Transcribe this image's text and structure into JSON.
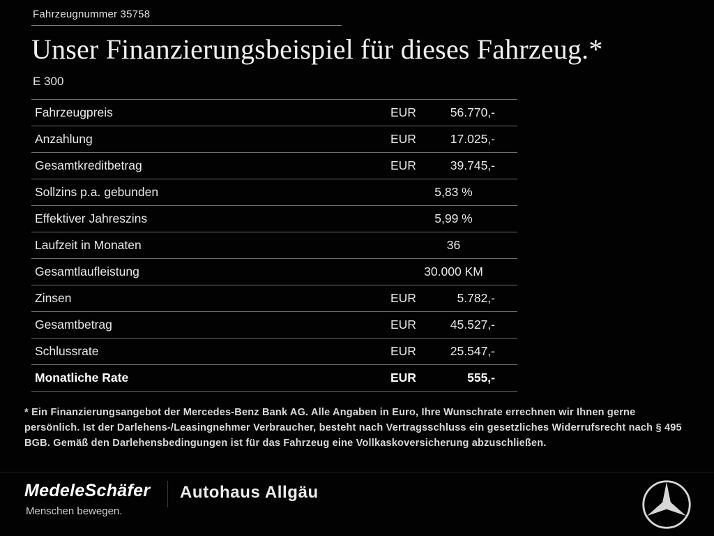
{
  "header": {
    "vehicle_number": "Fahrzeugnummer 35758",
    "title": "Unser Finanzierungsbeispiel für dieses Fahrzeug.*",
    "model": "E 300"
  },
  "table": {
    "rows": [
      {
        "label": "Fahrzeugpreis",
        "currency": "EUR",
        "value": "56.770,-",
        "bold": false
      },
      {
        "label": "Anzahlung",
        "currency": "EUR",
        "value": "17.025,-",
        "bold": false
      },
      {
        "label": "Gesamtkreditbetrag",
        "currency": "EUR",
        "value": "39.745,-",
        "bold": false
      },
      {
        "label": "Sollzins p.a. gebunden",
        "currency": "",
        "value": "5,83 %",
        "bold": false
      },
      {
        "label": "Effektiver Jahreszins",
        "currency": "",
        "value": "5,99 %",
        "bold": false
      },
      {
        "label": "Laufzeit in Monaten",
        "currency": "",
        "value": "36",
        "bold": false
      },
      {
        "label": "Gesamtlaufleistung",
        "currency": "",
        "value": "30.000 KM",
        "bold": false
      },
      {
        "label": "Zinsen",
        "currency": "EUR",
        "value": "5.782,-",
        "bold": false
      },
      {
        "label": "Gesamtbetrag",
        "currency": "EUR",
        "value": "45.527,-",
        "bold": false
      },
      {
        "label": "Schlussrate",
        "currency": "EUR",
        "value": "25.547,-",
        "bold": false
      },
      {
        "label": "Monatliche Rate",
        "currency": "EUR",
        "value": "555,-",
        "bold": true
      }
    ]
  },
  "footnote": "* Ein Finanzierungsangebot der Mercedes-Benz Bank AG. Alle Angaben in Euro, Ihre Wunschrate errechnen wir Ihnen gerne persönlich. Ist der Darlehens-/Leasingnehmer Verbraucher, besteht nach Vertragsschluss ein gesetzliches Widerrufsrecht nach § 495 BGB. Gemäß den Darlehensbedingungen ist für das Fahrzeug eine Vollkaskoversicherung abzuschließen.",
  "footer": {
    "dealer_name": "MedeleSchäfer",
    "dealer_tagline": "Menschen bewegen.",
    "dealer_secondary": "Autohaus Allgäu",
    "brand_icon": "mercedes-star-icon"
  },
  "colors": {
    "background": "#000000",
    "text": "#e8e8e8",
    "row_border": "#6e6e6e",
    "logo": "#d7d7d7"
  }
}
